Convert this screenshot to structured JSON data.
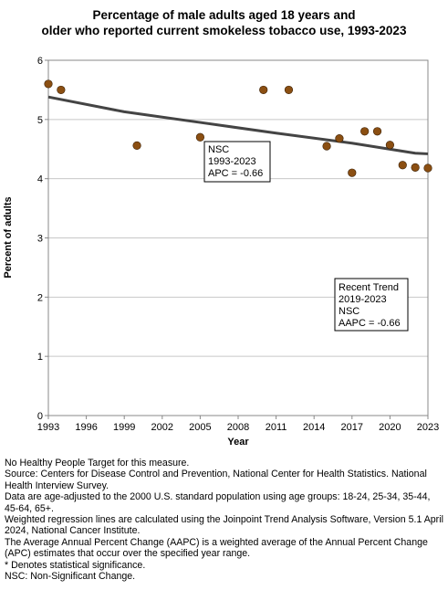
{
  "chart_data": {
    "type": "scatter",
    "title": [
      "Percentage of male adults aged 18 years and",
      "older who reported current smokeless tobacco use, 1993-2023"
    ],
    "xlabel": "Year",
    "ylabel": "Percent of adults",
    "xlim": [
      1993,
      2023
    ],
    "ylim": [
      0,
      6
    ],
    "x_ticks": [
      1993,
      1996,
      1999,
      2002,
      2005,
      2008,
      2011,
      2014,
      2017,
      2020,
      2023
    ],
    "y_ticks": [
      0,
      1,
      2,
      3,
      4,
      5,
      6
    ],
    "grid": true,
    "points": [
      {
        "x": 1993,
        "y": 5.6
      },
      {
        "x": 1994,
        "y": 5.5
      },
      {
        "x": 2000,
        "y": 4.56
      },
      {
        "x": 2005,
        "y": 4.7
      },
      {
        "x": 2010,
        "y": 5.5
      },
      {
        "x": 2012,
        "y": 5.5
      },
      {
        "x": 2015,
        "y": 4.55
      },
      {
        "x": 2016,
        "y": 4.68
      },
      {
        "x": 2017,
        "y": 4.1
      },
      {
        "x": 2018,
        "y": 4.8
      },
      {
        "x": 2019,
        "y": 4.8
      },
      {
        "x": 2020,
        "y": 4.57
      },
      {
        "x": 2021,
        "y": 4.23
      },
      {
        "x": 2022,
        "y": 4.19
      },
      {
        "x": 2023,
        "y": 4.18
      }
    ],
    "trend_line": [
      {
        "x": 1993,
        "y": 5.38
      },
      {
        "x": 1999,
        "y": 5.13
      },
      {
        "x": 2005,
        "y": 4.95
      },
      {
        "x": 2011,
        "y": 4.77
      },
      {
        "x": 2017,
        "y": 4.6
      },
      {
        "x": 2022,
        "y": 4.43
      },
      {
        "x": 2023,
        "y": 4.42
      }
    ],
    "marker_color": "#8b4f12",
    "trend_color": "#444444",
    "annotations": [
      {
        "lines": [
          "NSC",
          "1993-2023",
          "APC = -0.66"
        ]
      },
      {
        "lines": [
          "Recent Trend",
          "2019-2023",
          "NSC",
          "AAPC = -0.66"
        ]
      }
    ]
  },
  "notes": [
    "No Healthy People Target for this measure.",
    "Source: Centers for Disease Control and Prevention, National Center for Health Statistics. National Health Interview Survey.",
    "Data are age-adjusted to the 2000 U.S. standard population using age groups: 18-24, 25-34, 35-44, 45-64, 65+.",
    "Weighted regression lines are calculated using the Joinpoint Trend Analysis Software, Version 5.1 April 2024, National Cancer Institute.",
    "The Average Annual Percent Change (AAPC) is a weighted average of the Annual Percent Change (APC) estimates that occur over the specified year range.",
    "* Denotes statistical significance.",
    "NSC: Non-Significant Change."
  ]
}
